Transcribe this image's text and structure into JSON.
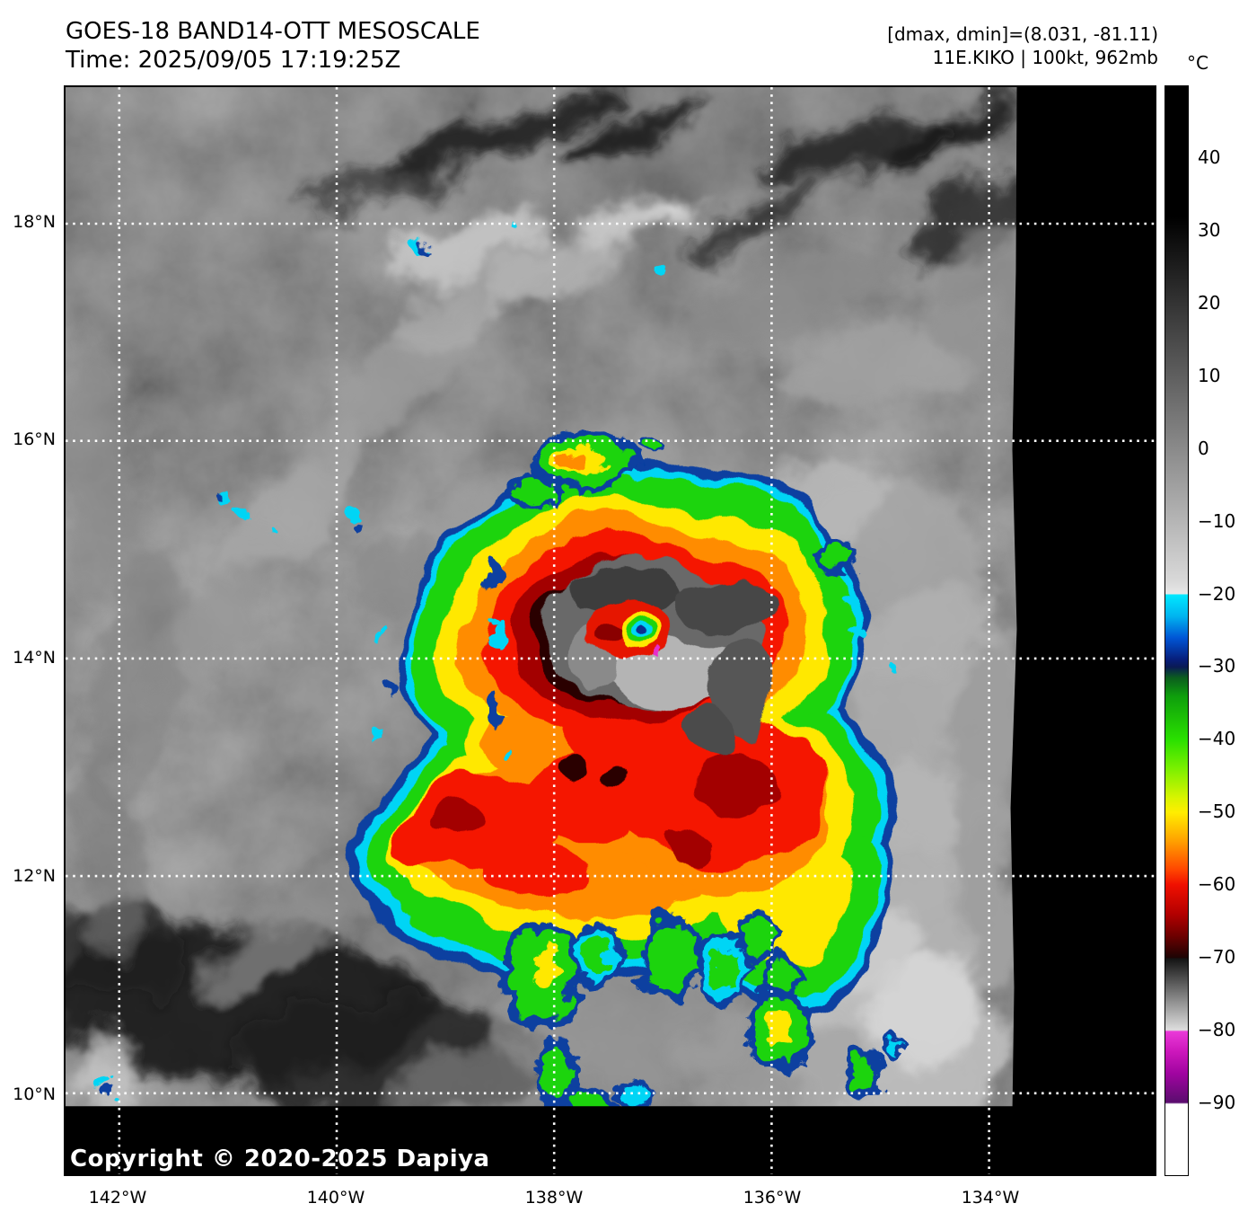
{
  "header": {
    "title": "GOES-18 BAND14-OTT MESOSCALE",
    "time": "Time: 2025/09/05 17:19:25Z"
  },
  "annotations": {
    "dmax_dmin": "[dmax, dmin]=(8.031, -81.11)",
    "storm_info": "11E.KIKO | 100kt, 962mb"
  },
  "colorbar": {
    "unit": "°C",
    "max_value": 50,
    "min_value": -100,
    "ticks": [
      40,
      30,
      20,
      10,
      0,
      -10,
      -20,
      -30,
      -40,
      -50,
      -60,
      -70,
      -80,
      -90
    ],
    "stops": [
      {
        "t": 50,
        "c": "#000000"
      },
      {
        "t": 32,
        "c": "#000000"
      },
      {
        "t": -18,
        "c": "#d8d8d8"
      },
      {
        "t": -20,
        "c": "#e8e8e8"
      },
      {
        "t": -20.01,
        "c": "#00e9ff"
      },
      {
        "t": -23,
        "c": "#00b4f0"
      },
      {
        "t": -26,
        "c": "#0055d5"
      },
      {
        "t": -29,
        "c": "#071e7a"
      },
      {
        "t": -30,
        "c": "#0a1a55"
      },
      {
        "t": -31.5,
        "c": "#0b5e1e"
      },
      {
        "t": -34,
        "c": "#0e9e0c"
      },
      {
        "t": -40,
        "c": "#2ae000"
      },
      {
        "t": -44,
        "c": "#7bf000"
      },
      {
        "t": -48,
        "c": "#d8f400"
      },
      {
        "t": -50,
        "c": "#ffee00"
      },
      {
        "t": -54,
        "c": "#ffa000"
      },
      {
        "t": -58,
        "c": "#ff4400"
      },
      {
        "t": -60,
        "c": "#f01000"
      },
      {
        "t": -64,
        "c": "#b30000"
      },
      {
        "t": -67,
        "c": "#6e0000"
      },
      {
        "t": -70,
        "c": "#1e0404"
      },
      {
        "t": -70.2,
        "c": "#141414"
      },
      {
        "t": -72,
        "c": "#3a3a3a"
      },
      {
        "t": -76,
        "c": "#8e8e8e"
      },
      {
        "t": -80,
        "c": "#dedede"
      },
      {
        "t": -80.2,
        "c": "#ea3ad8"
      },
      {
        "t": -83,
        "c": "#cc17bb"
      },
      {
        "t": -86,
        "c": "#a004a0"
      },
      {
        "t": -90,
        "c": "#5a0d6e"
      },
      {
        "t": -90.2,
        "c": "#ffffff"
      },
      {
        "t": -100,
        "c": "#ffffff"
      }
    ]
  },
  "axes": {
    "lat_ticks": [
      "18°N",
      "16°N",
      "14°N",
      "12°N",
      "10°N"
    ],
    "lon_ticks": [
      "142°W",
      "140°W",
      "138°W",
      "136°W",
      "134°W"
    ]
  },
  "map": {
    "copyright": "Copyright © 2020-2025 Dapiya"
  }
}
